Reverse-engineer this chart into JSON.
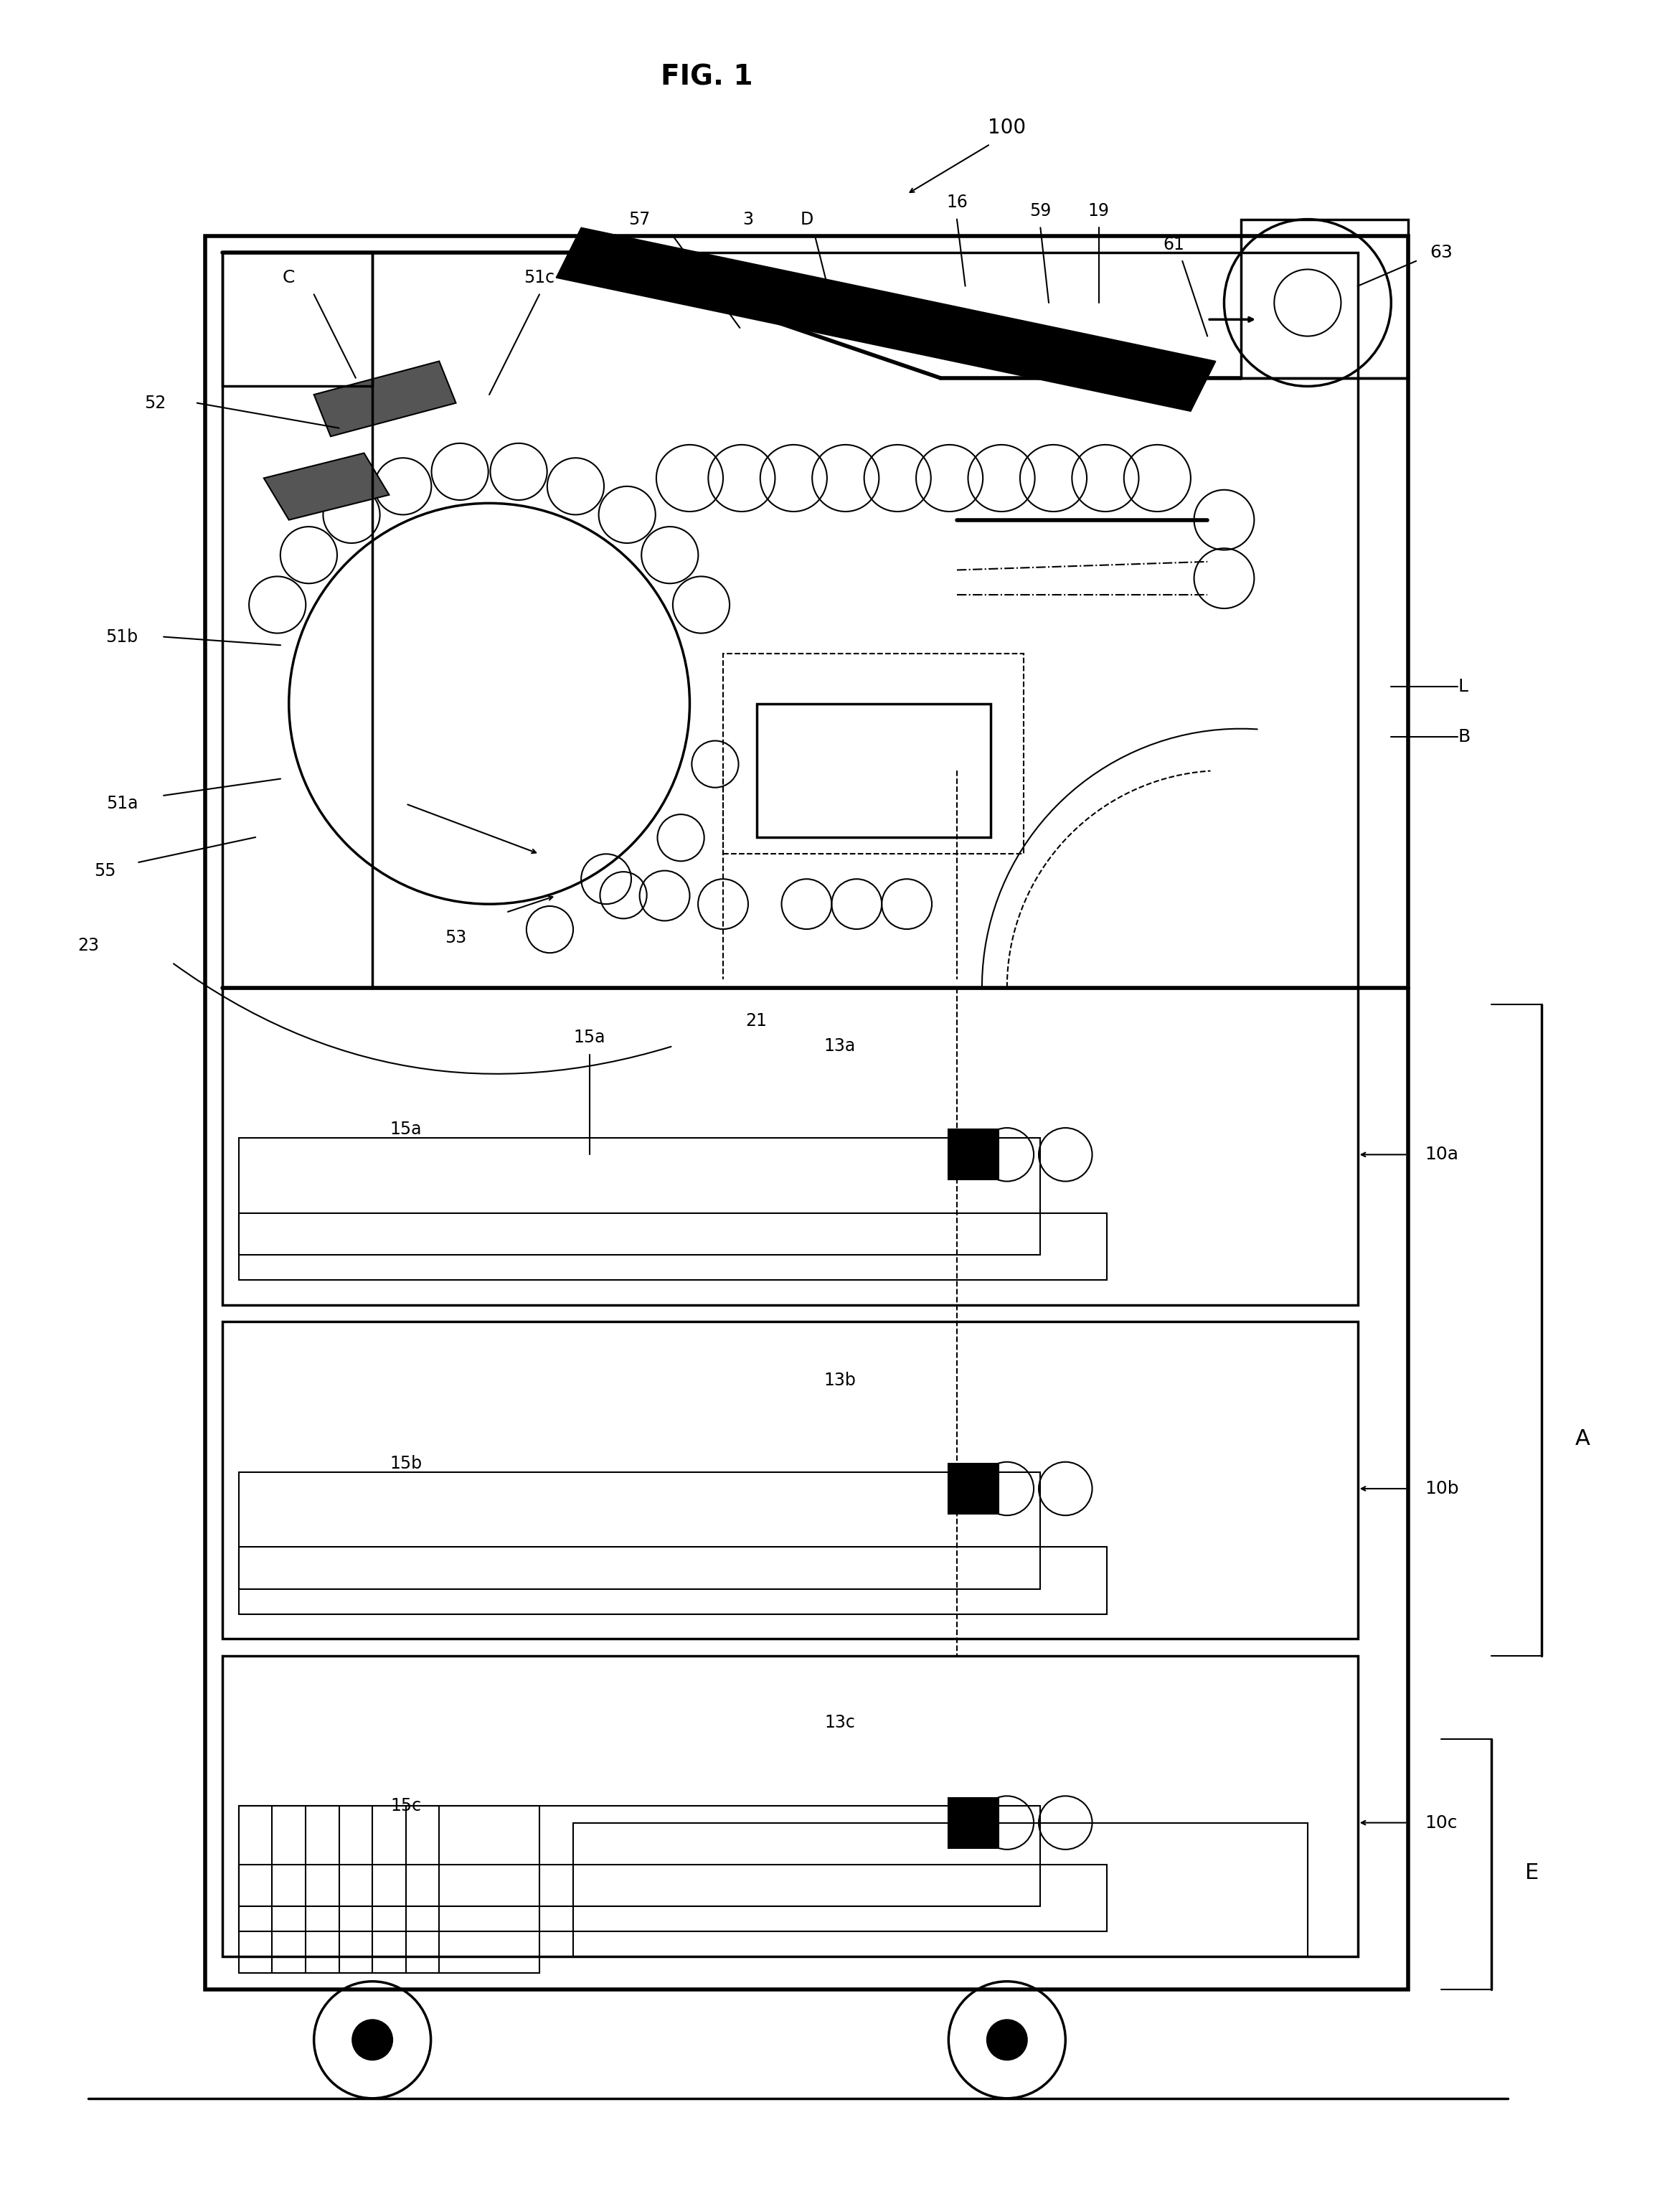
{
  "title": "FIG. 1",
  "bg_color": "#ffffff",
  "line_color": "#000000",
  "fig_width": 23.42,
  "fig_height": 30.79,
  "labels": {
    "fig_title": "FIG. 1",
    "label_100": "100",
    "label_C": "C",
    "label_51c": "51c",
    "label_57": "57",
    "label_3": "3",
    "label_D": "D",
    "label_16": "16",
    "label_63": "63",
    "label_52": "52",
    "label_51b": "51b",
    "label_59": "59",
    "label_19": "19",
    "label_61": "61",
    "label_55": "55",
    "label_51a": "51a",
    "label_53": "53",
    "label_23": "23",
    "label_15a": "15a",
    "label_21": "21",
    "label_13a": "13a",
    "label_10a": "10a",
    "label_15b": "15b",
    "label_13b": "13b",
    "label_10b": "10b",
    "label_A": "A",
    "label_15c": "15c",
    "label_13c": "13c",
    "label_10c": "10c",
    "label_L": "L",
    "label_B": "B",
    "label_E": "E"
  }
}
